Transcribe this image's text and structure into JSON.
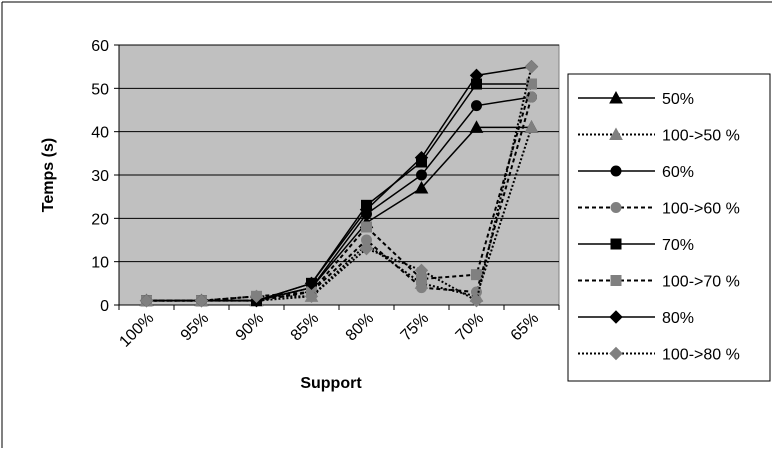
{
  "chart_data": {
    "type": "line",
    "title": "",
    "xlabel": "Support",
    "ylabel": "Temps (s)",
    "categories": [
      "100%",
      "95%",
      "90%",
      "85%",
      "80%",
      "75%",
      "70%",
      "65%"
    ],
    "ylim": [
      0,
      60
    ],
    "yticks": [
      0,
      10,
      20,
      30,
      40,
      50,
      60
    ],
    "grid": "horizontal",
    "plot_background": "#c0c0c0",
    "legend_position": "right",
    "series": [
      {
        "name": "50%",
        "values": [
          1,
          1,
          1,
          4,
          19,
          27,
          41,
          41
        ],
        "color": "#000000",
        "dash": "solid",
        "marker": "triangle"
      },
      {
        "name": "100->50 %",
        "values": [
          1,
          1,
          1,
          2,
          14,
          5,
          2,
          41
        ],
        "color": "#808080",
        "dash": "dotted",
        "marker": "triangle"
      },
      {
        "name": "60%",
        "values": [
          1,
          1,
          1,
          4,
          21,
          30,
          46,
          48
        ],
        "color": "#000000",
        "dash": "solid",
        "marker": "circle"
      },
      {
        "name": "100->60 %",
        "values": [
          1,
          1,
          1,
          3,
          15,
          4,
          3,
          48
        ],
        "color": "#808080",
        "dash": "dashed",
        "marker": "circle"
      },
      {
        "name": "70%",
        "values": [
          1,
          1,
          1,
          5,
          23,
          33,
          51,
          51
        ],
        "color": "#000000",
        "dash": "solid",
        "marker": "square"
      },
      {
        "name": "100->70 %",
        "values": [
          1,
          1,
          2,
          3,
          18,
          6,
          7,
          51
        ],
        "color": "#808080",
        "dash": "dashed",
        "marker": "square"
      },
      {
        "name": "80%",
        "values": [
          1,
          1,
          1,
          5,
          22,
          34,
          53,
          55
        ],
        "color": "#000000",
        "dash": "solid",
        "marker": "diamond"
      },
      {
        "name": "100->80 %",
        "values": [
          1,
          1,
          2,
          2,
          13,
          8,
          1,
          55
        ],
        "color": "#808080",
        "dash": "dotted",
        "marker": "diamond"
      }
    ]
  }
}
